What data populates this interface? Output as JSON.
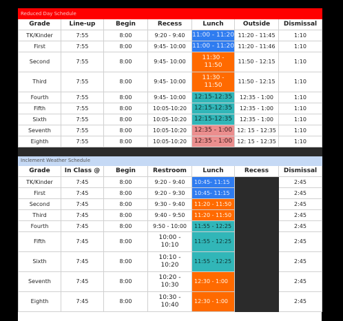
{
  "reduced": {
    "title": "Reduced Day Schedule",
    "headers": [
      "Grade",
      "Line-up",
      "Begin",
      "Recess",
      "Lunch",
      "Outside",
      "Dismissal"
    ],
    "rows": [
      {
        "grade": "TK/Kinder",
        "lineup": "7:55",
        "begin": "8:00",
        "recess": "9:20 - 9:40",
        "lunch": "11:00 - 11:20",
        "outside": "11:20 - 11:45",
        "dismissal": "1:10"
      },
      {
        "grade": "First",
        "lineup": "7:55",
        "begin": "8:00",
        "recess": "9:45- 10:00",
        "lunch": "11:00 - 11:20",
        "outside": "11:20 - 11:46",
        "dismissal": "1:10"
      },
      {
        "grade": "Second",
        "lineup": "7:55",
        "begin": "8:00",
        "recess": "9:45- 10:00",
        "lunch": "11:30 - 11:50",
        "outside": "11:50 - 12:15",
        "dismissal": "1:10"
      },
      {
        "grade": "Third",
        "lineup": "7:55",
        "begin": "8:00",
        "recess": "9:45- 10:00",
        "lunch": "11:30 - 11:50",
        "outside": "11:50 - 12:15",
        "dismissal": "1:10"
      },
      {
        "grade": "Fourth",
        "lineup": "7:55",
        "begin": "8:00",
        "recess": "9:45- 10:00",
        "lunch": "12:15-12:35",
        "outside": "12:35 - 1:00",
        "dismissal": "1:10"
      },
      {
        "grade": "Fifth",
        "lineup": "7:55",
        "begin": "8:00",
        "recess": "10:05-10:20",
        "lunch": "12:15-12:35",
        "outside": "12:35 - 1:00",
        "dismissal": "1:10"
      },
      {
        "grade": "Sixth",
        "lineup": "7:55",
        "begin": "8:00",
        "recess": "10:05-10:20",
        "lunch": "12:15-12:35",
        "outside": "12:35 - 1:00",
        "dismissal": "1:10"
      },
      {
        "grade": "Seventh",
        "lineup": "7:55",
        "begin": "8:00",
        "recess": "10:05-10:20",
        "lunch": "12:35 - 1:00",
        "outside": "12: 15 - 12:35",
        "dismissal": "1:10"
      },
      {
        "grade": "Eighth",
        "lineup": "7:55",
        "begin": "8:00",
        "recess": "10:05-10:20",
        "lunch": "12:35 - 1:00",
        "outside": "12: 15 - 12:35",
        "dismissal": "1:10"
      }
    ]
  },
  "inclement": {
    "title": "Inclement Weather Schedule",
    "headers": [
      "Grade",
      "In Class @",
      "Begin",
      "Restroom",
      "Lunch",
      "Recess",
      "Dismissal"
    ],
    "rows": [
      {
        "grade": "TK/Kinder",
        "inclass": "7:45",
        "begin": "8:00",
        "restroom": "9:20 - 9:40",
        "lunch": "10:45- 11:15",
        "dismissal": "2:45"
      },
      {
        "grade": "First",
        "inclass": "7:45",
        "begin": "8:00",
        "restroom": "9:20 - 9:30",
        "lunch": "10:45- 11:15",
        "dismissal": "2:45"
      },
      {
        "grade": "Second",
        "inclass": "7:45",
        "begin": "8:00",
        "restroom": "9:30 - 9:40",
        "lunch": "11:20 - 11:50",
        "dismissal": "2:45"
      },
      {
        "grade": "Third",
        "inclass": "7:45",
        "begin": "8:00",
        "restroom": "9:40 - 9:50",
        "lunch": "11:20 - 11:50",
        "dismissal": "2:45"
      },
      {
        "grade": "Fourth",
        "inclass": "7:45",
        "begin": "8:00",
        "restroom": "9:50 - 10:00",
        "lunch": "11:55 - 12:25",
        "dismissal": "2:45"
      },
      {
        "grade": "Fifth",
        "inclass": "7:45",
        "begin": "8:00",
        "restroom": "10:00 - 10:10",
        "lunch": "11:55 - 12:25",
        "dismissal": "2:45"
      },
      {
        "grade": "Sixth",
        "inclass": "7:45",
        "begin": "8:00",
        "restroom": "10:10 - 10:20",
        "lunch": "11:55 - 12:25",
        "dismissal": "2:45"
      },
      {
        "grade": "Seventh",
        "inclass": "7:45",
        "begin": "8:00",
        "restroom": "10:20 - 10:30",
        "lunch": "12:30 - 1:00",
        "dismissal": "2:45"
      },
      {
        "grade": "Eighth",
        "inclass": "7:45",
        "begin": "8:00",
        "restroom": "10:30 - 10:40",
        "lunch": "12:30 - 1:00",
        "dismissal": "2:45"
      }
    ]
  },
  "colors": {
    "red_banner": "#ff0000",
    "blue_banner": "#c5d9f5",
    "lunch_blue": "#2f7cf0",
    "lunch_orange": "#ff6a00",
    "lunch_teal": "#31b6b8",
    "lunch_pink": "#eb8e8e",
    "dark": "#2b2b2b"
  }
}
